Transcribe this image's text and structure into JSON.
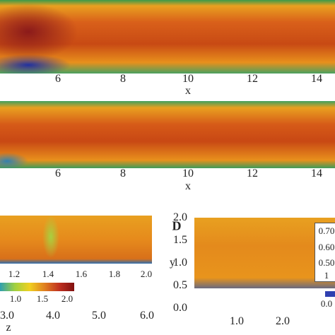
{
  "panel_a": {
    "xticks": [
      "6",
      "8",
      "10",
      "12",
      "14"
    ],
    "xlabel": "x"
  },
  "panel_b": {
    "xticks": [
      "6",
      "8",
      "10",
      "12",
      "14"
    ],
    "xlabel": "x"
  },
  "panel_c": {
    "xticks": [
      "1.2",
      "1.4",
      "1.6",
      "1.8",
      "2.0"
    ],
    "colorbar_ticks": [
      "1.0",
      "1.5",
      "2.0"
    ],
    "bottom_ticks": [
      "3.0",
      "4.0",
      "5.0",
      "6.0"
    ],
    "bottom_label": "z"
  },
  "panel_d": {
    "label": "D",
    "yticks": [
      "2.0",
      "1.5",
      "1.0",
      "0.5",
      "0.0"
    ],
    "ylabel": "y",
    "xticks": [
      "1.0",
      "2.0"
    ],
    "inset_ticks": [
      "0.70",
      "0.60",
      "0.50",
      "1"
    ],
    "colorbar_tick": "0.0"
  }
}
